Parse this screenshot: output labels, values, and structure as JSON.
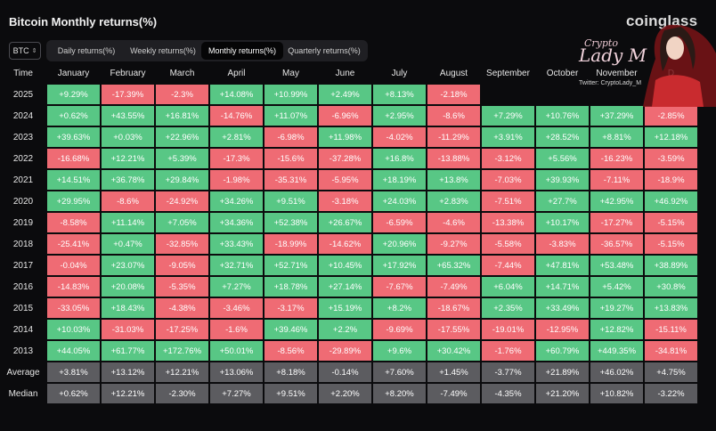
{
  "header": {
    "title": "Bitcoin Monthly returns(%)",
    "brand": "coinglass",
    "coin": "BTC"
  },
  "tabs": [
    {
      "label": "Daily returns(%)",
      "active": false
    },
    {
      "label": "Weekly returns(%)",
      "active": false
    },
    {
      "label": "Monthly returns(%)",
      "active": true
    },
    {
      "label": "Quarterly returns(%)",
      "active": false
    }
  ],
  "watermark": {
    "line1": "Crypto",
    "line2": "Lady M",
    "line3": "Twitter: CryptoLady_M"
  },
  "table": {
    "corner": "Time",
    "columns": [
      "January",
      "February",
      "March",
      "April",
      "May",
      "June",
      "July",
      "August",
      "September",
      "October",
      "November",
      "D"
    ],
    "rows": [
      {
        "label": "2025",
        "type": "year",
        "values": [
          "+9.29%",
          "-17.39%",
          "-2.3%",
          "+14.08%",
          "+10.99%",
          "+2.49%",
          "+8.13%",
          "-2.18%",
          "",
          "",
          "",
          ""
        ]
      },
      {
        "label": "2024",
        "type": "year",
        "values": [
          "+0.62%",
          "+43.55%",
          "+16.81%",
          "-14.76%",
          "+11.07%",
          "-6.96%",
          "+2.95%",
          "-8.6%",
          "+7.29%",
          "+10.76%",
          "+37.29%",
          "-2.85%"
        ]
      },
      {
        "label": "2023",
        "type": "year",
        "values": [
          "+39.63%",
          "+0.03%",
          "+22.96%",
          "+2.81%",
          "-6.98%",
          "+11.98%",
          "-4.02%",
          "-11.29%",
          "+3.91%",
          "+28.52%",
          "+8.81%",
          "+12.18%"
        ]
      },
      {
        "label": "2022",
        "type": "year",
        "values": [
          "-16.68%",
          "+12.21%",
          "+5.39%",
          "-17.3%",
          "-15.6%",
          "-37.28%",
          "+16.8%",
          "-13.88%",
          "-3.12%",
          "+5.56%",
          "-16.23%",
          "-3.59%"
        ]
      },
      {
        "label": "2021",
        "type": "year",
        "values": [
          "+14.51%",
          "+36.78%",
          "+29.84%",
          "-1.98%",
          "-35.31%",
          "-5.95%",
          "+18.19%",
          "+13.8%",
          "-7.03%",
          "+39.93%",
          "-7.11%",
          "-18.9%"
        ]
      },
      {
        "label": "2020",
        "type": "year",
        "values": [
          "+29.95%",
          "-8.6%",
          "-24.92%",
          "+34.26%",
          "+9.51%",
          "-3.18%",
          "+24.03%",
          "+2.83%",
          "-7.51%",
          "+27.7%",
          "+42.95%",
          "+46.92%"
        ]
      },
      {
        "label": "2019",
        "type": "year",
        "values": [
          "-8.58%",
          "+11.14%",
          "+7.05%",
          "+34.36%",
          "+52.38%",
          "+26.67%",
          "-6.59%",
          "-4.6%",
          "-13.38%",
          "+10.17%",
          "-17.27%",
          "-5.15%"
        ]
      },
      {
        "label": "2018",
        "type": "year",
        "values": [
          "-25.41%",
          "+0.47%",
          "-32.85%",
          "+33.43%",
          "-18.99%",
          "-14.62%",
          "+20.96%",
          "-9.27%",
          "-5.58%",
          "-3.83%",
          "-36.57%",
          "-5.15%"
        ]
      },
      {
        "label": "2017",
        "type": "year",
        "values": [
          "-0.04%",
          "+23.07%",
          "-9.05%",
          "+32.71%",
          "+52.71%",
          "+10.45%",
          "+17.92%",
          "+65.32%",
          "-7.44%",
          "+47.81%",
          "+53.48%",
          "+38.89%"
        ]
      },
      {
        "label": "2016",
        "type": "year",
        "values": [
          "-14.83%",
          "+20.08%",
          "-5.35%",
          "+7.27%",
          "+18.78%",
          "+27.14%",
          "-7.67%",
          "-7.49%",
          "+6.04%",
          "+14.71%",
          "+5.42%",
          "+30.8%"
        ]
      },
      {
        "label": "2015",
        "type": "year",
        "values": [
          "-33.05%",
          "+18.43%",
          "-4.38%",
          "-3.46%",
          "-3.17%",
          "+15.19%",
          "+8.2%",
          "-18.67%",
          "+2.35%",
          "+33.49%",
          "+19.27%",
          "+13.83%"
        ]
      },
      {
        "label": "2014",
        "type": "year",
        "values": [
          "+10.03%",
          "-31.03%",
          "-17.25%",
          "-1.6%",
          "+39.46%",
          "+2.2%",
          "-9.69%",
          "-17.55%",
          "-19.01%",
          "-12.95%",
          "+12.82%",
          "-15.11%"
        ]
      },
      {
        "label": "2013",
        "type": "year",
        "values": [
          "+44.05%",
          "+61.77%",
          "+172.76%",
          "+50.01%",
          "-8.56%",
          "-29.89%",
          "+9.6%",
          "+30.42%",
          "-1.76%",
          "+60.79%",
          "+449.35%",
          "-34.81%"
        ]
      },
      {
        "label": "Average",
        "type": "stat",
        "values": [
          "+3.81%",
          "+13.12%",
          "+12.21%",
          "+13.06%",
          "+8.18%",
          "-0.14%",
          "+7.60%",
          "+1.45%",
          "-3.77%",
          "+21.89%",
          "+46.02%",
          "+4.75%"
        ]
      },
      {
        "label": "Median",
        "type": "stat",
        "values": [
          "+0.62%",
          "+12.21%",
          "-2.30%",
          "+7.27%",
          "+9.51%",
          "+2.20%",
          "+8.20%",
          "-7.49%",
          "-4.35%",
          "+21.20%",
          "+10.82%",
          "-3.22%"
        ]
      }
    ]
  },
  "colors": {
    "positive": "#58c785",
    "negative": "#ef6b74",
    "stat": "#5c5c60",
    "background": "#0b0b0d"
  }
}
